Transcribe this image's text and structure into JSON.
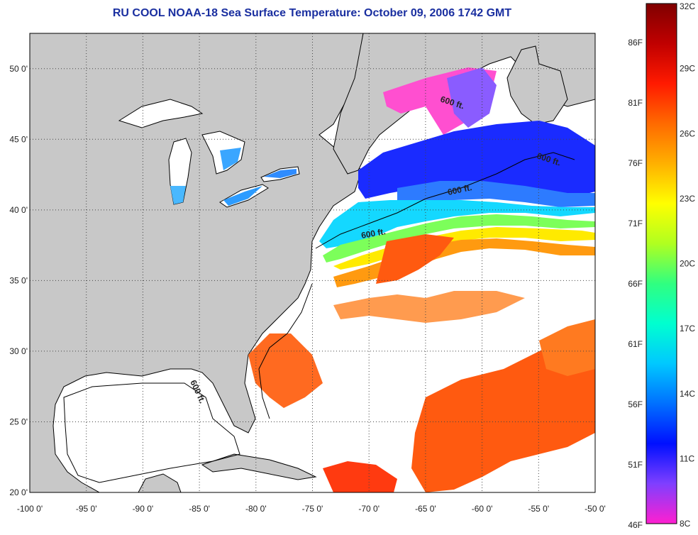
{
  "title": "RU COOL  NOAA-18  Sea Surface Temperature:  October 09, 2006 1742 GMT",
  "map": {
    "lon_range": [
      -100,
      -50
    ],
    "lat_range": [
      20,
      52.5
    ],
    "lon_ticks": [
      "-100 0'",
      "-95 0'",
      "-90 0'",
      "-85 0'",
      "-80 0'",
      "-75 0'",
      "-70 0'",
      "-65 0'",
      "-60 0'",
      "-55 0'",
      "-50 0'"
    ],
    "lat_ticks": [
      "20 0'",
      "25 0'",
      "30 0'",
      "35 0'",
      "40 0'",
      "45 0'",
      "50 0'"
    ],
    "grid": "dotted",
    "land_color": "#c8c8c8",
    "no_data_color": "#ffffff",
    "contour_labels": [
      "600 ft.",
      "600 ft.",
      "600 ft.",
      "600 ft.",
      "600 ft."
    ]
  },
  "colorbar": {
    "celsius_labels": [
      "32C",
      "29C",
      "26C",
      "23C",
      "20C",
      "17C",
      "14C",
      "11C",
      "8C"
    ],
    "fahrenheit_labels": [
      "86F",
      "81F",
      "76F",
      "71F",
      "66F",
      "61F",
      "56F",
      "51F",
      "46F"
    ],
    "range_c": [
      8,
      32
    ],
    "stops": [
      "#ff1fd0",
      "#7f3fff",
      "#0010ff",
      "#0070ff",
      "#00c8ff",
      "#00ffd0",
      "#30ff80",
      "#b0ff20",
      "#ffff00",
      "#ffb000",
      "#ff6a00",
      "#ff1a00",
      "#c00000",
      "#800000"
    ]
  }
}
